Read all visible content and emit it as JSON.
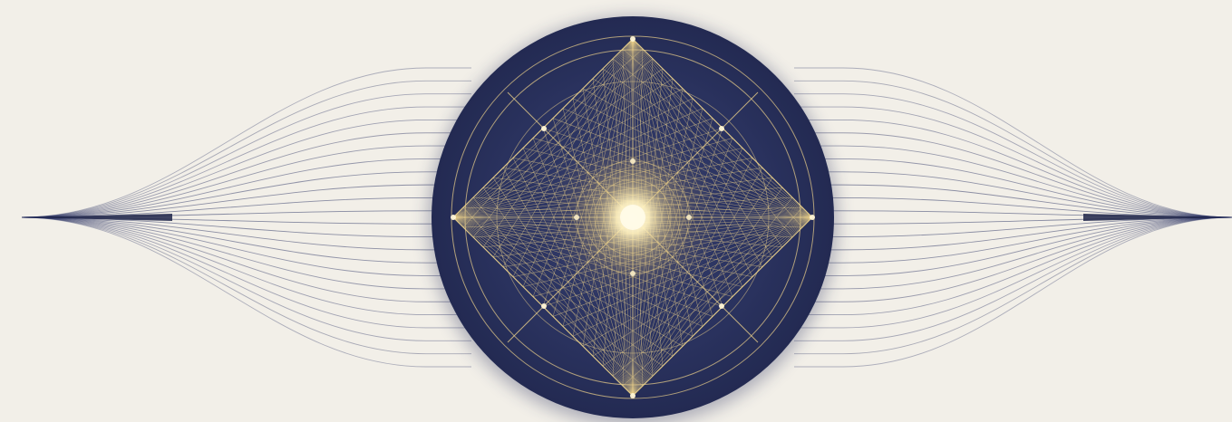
{
  "artwork": {
    "kind": "geometric-illustration",
    "colors": {
      "background": "#f2efe8",
      "navy": "#2a325e",
      "navy_deep": "#1e2549",
      "line_navy": "#2b3363",
      "gold": "#e9cf8a",
      "gold_bright": "#fff6d6",
      "glow_core": "#fffbe8"
    },
    "elements": [
      "left-line-fan",
      "right-line-fan",
      "central-disc",
      "concentric-rings",
      "diamond-wireframe",
      "glowing-center"
    ]
  }
}
